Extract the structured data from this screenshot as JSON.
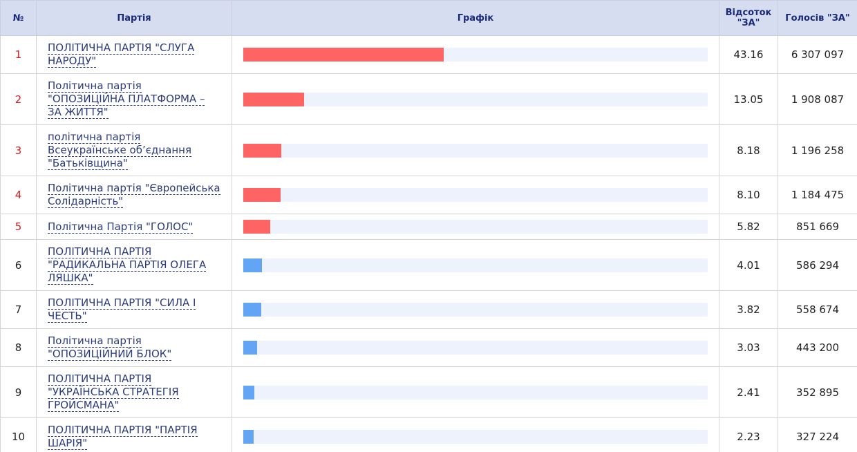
{
  "table": {
    "headers": [
      "№",
      "Партія",
      "Графік",
      "Відсоток \"ЗА\"",
      "Голосів \"ЗА\""
    ],
    "bar_xlim": [
      0,
      100
    ],
    "rows": [
      {
        "number": "1",
        "party": "ПОЛІТИЧНА ПАРТІЯ \"СЛУГА НАРОДУ\"",
        "percent": "43.16",
        "votes": "6 307 097",
        "color": "#ff6464"
      },
      {
        "number": "2",
        "party": "Політична партія \"ОПОЗИЦІЙНА ПЛАТФОРМА – ЗА ЖИТТЯ\"",
        "percent": "13.05",
        "votes": "1 908 087",
        "color": "#ff6464"
      },
      {
        "number": "3",
        "party": "політична партія Всеукраїнське об’єднання \"Батьківщина\"",
        "percent": "8.18",
        "votes": "1 196 258",
        "color": "#ff6464"
      },
      {
        "number": "4",
        "party": "Політична партія \"Європейська Солідарність\"",
        "percent": "8.10",
        "votes": "1 184 475",
        "color": "#ff6464"
      },
      {
        "number": "5",
        "party": "Політична Партія \"ГОЛОС\"",
        "percent": "5.82",
        "votes": "851 669",
        "color": "#ff6464"
      },
      {
        "number": "6",
        "party": "ПОЛІТИЧНА ПАРТІЯ \"РАДИКАЛЬНА ПАРТІЯ ОЛЕГА ЛЯШКА\"",
        "percent": "4.01",
        "votes": "586 294",
        "color": "#64a4f4"
      },
      {
        "number": "7",
        "party": "ПОЛІТИЧНА ПАРТІЯ \"СИЛА І ЧЕСТЬ\"",
        "percent": "3.82",
        "votes": "558 674",
        "color": "#64a4f4"
      },
      {
        "number": "8",
        "party": "Політична партія \"ОПОЗИЦІЙНИЙ БЛОК\"",
        "percent": "3.03",
        "votes": "443 200",
        "color": "#64a4f4"
      },
      {
        "number": "9",
        "party": "ПОЛІТИЧНА ПАРТІЯ \"УКРАЇНСЬКА СТРАТЕГІЯ ГРОЙСМАНА\"",
        "percent": "2.41",
        "votes": "352 895",
        "color": "#64a4f4"
      },
      {
        "number": "10",
        "party": "ПОЛІТИЧНА ПАРТІЯ \"ПАРТІЯ ШАРІЯ\"",
        "percent": "2.23",
        "votes": "327 224",
        "color": "#64a4f4"
      }
    ]
  }
}
